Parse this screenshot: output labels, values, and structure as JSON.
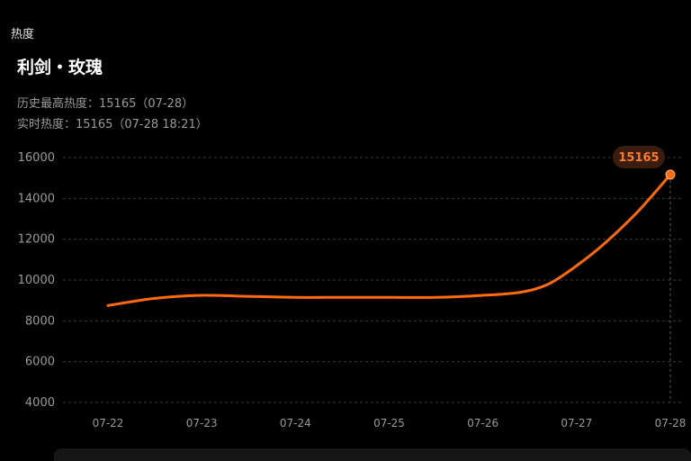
{
  "header": {
    "section_label": "热度",
    "title": "利剑・玫瑰",
    "history_high": "历史最高热度：15165（07-28）",
    "realtime": "实时热度：15165（07-28 18:21）"
  },
  "colors": {
    "line": "#ff6a13",
    "badge_bg": "#3a1d0e",
    "badge_text": "#ff7a2a",
    "grid": "#3a3a3a",
    "tick_text": "#9a9a9a"
  },
  "chart_data": {
    "type": "line",
    "title": "",
    "xlabel": "",
    "ylabel": "",
    "categories": [
      "07-22",
      "07-23",
      "07-24",
      "07-25",
      "07-26",
      "07-27",
      "07-28"
    ],
    "x": [
      0,
      0.5,
      1,
      1.5,
      2,
      2.5,
      3,
      3.5,
      4,
      4.4,
      4.7,
      5,
      5.3,
      5.6,
      5.8,
      6
    ],
    "values": [
      8750,
      9100,
      9250,
      9200,
      9150,
      9150,
      9150,
      9150,
      9250,
      9400,
      9800,
      10700,
      11800,
      13100,
      14100,
      15165
    ],
    "ylim": [
      4000,
      16000
    ],
    "yticks": [
      4000,
      6000,
      8000,
      10000,
      12000,
      14000,
      16000
    ],
    "grid": true,
    "highlight": {
      "label": "15165",
      "category": "07-28",
      "value": 15165
    }
  }
}
